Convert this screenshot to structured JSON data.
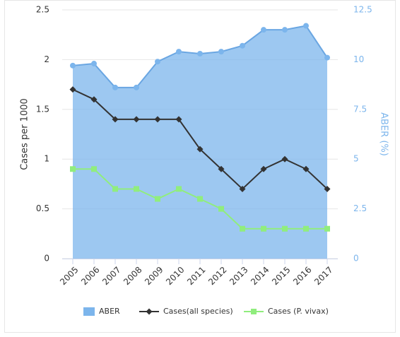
{
  "chart_data": {
    "type": "line",
    "categories": [
      "2005",
      "2006",
      "2007",
      "2008",
      "2009",
      "2010",
      "2011",
      "2012",
      "2013",
      "2014",
      "2015",
      "2016",
      "2017"
    ],
    "ylabel": "Cases per 1000",
    "y2label": "ABER (%)",
    "ylim": [
      0,
      2.5
    ],
    "yticks": [
      0,
      0.5,
      1,
      1.5,
      2,
      2.5
    ],
    "y2lim": [
      0,
      12.5
    ],
    "y2ticks": [
      0,
      2.5,
      5,
      7.5,
      10,
      12.5
    ],
    "grid": true,
    "legend": "bottom",
    "series": [
      {
        "name": "ABER",
        "type": "area",
        "color": "#7cb5ec",
        "axis": "y2",
        "marker": "circle",
        "values": [
          9.7,
          9.8,
          8.6,
          8.6,
          9.9,
          10.4,
          10.3,
          10.4,
          10.7,
          11.5,
          11.5,
          11.7,
          10.1
        ]
      },
      {
        "name": "Cases(all species)",
        "type": "line",
        "color": "#333333",
        "marker": "diamond",
        "values": [
          1.7,
          1.6,
          1.4,
          1.4,
          1.4,
          1.4,
          1.1,
          0.9,
          0.7,
          0.9,
          1.0,
          0.9,
          0.7
        ]
      },
      {
        "name": "Cases (P. vivax)",
        "type": "line",
        "color": "#90ed7d",
        "marker": "square",
        "values": [
          0.9,
          0.9,
          0.7,
          0.7,
          0.6,
          0.7,
          0.6,
          0.5,
          0.3,
          0.3,
          0.3,
          0.3,
          0.3
        ]
      }
    ]
  }
}
